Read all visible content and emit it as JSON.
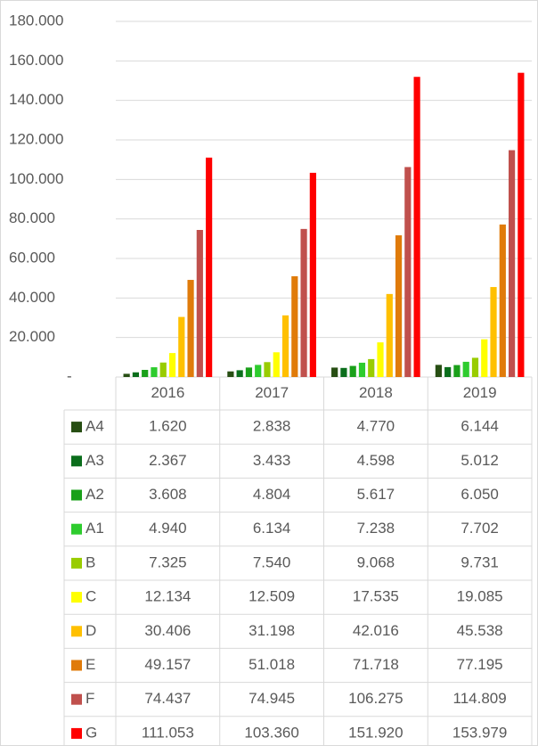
{
  "chart_data": {
    "type": "bar",
    "categories": [
      "2016",
      "2017",
      "2018",
      "2019"
    ],
    "ylim": [
      0,
      180000
    ],
    "yticks": [
      {
        "value": 0,
        "label": "-"
      },
      {
        "value": 20000,
        "label": "20.000"
      },
      {
        "value": 40000,
        "label": "40.000"
      },
      {
        "value": 60000,
        "label": "60.000"
      },
      {
        "value": 80000,
        "label": "80.000"
      },
      {
        "value": 100000,
        "label": "100.000"
      },
      {
        "value": 120000,
        "label": "120.000"
      },
      {
        "value": 140000,
        "label": "140.000"
      },
      {
        "value": 160000,
        "label": "160.000"
      },
      {
        "value": 180000,
        "label": "180.000"
      }
    ],
    "grid": true,
    "series": [
      {
        "name": "A4",
        "color": "#274e13",
        "values": [
          1620,
          2838,
          4770,
          6144
        ],
        "value_labels": [
          "1.620",
          "2.838",
          "4.770",
          "6.144"
        ]
      },
      {
        "name": "A3",
        "color": "#0b6e1c",
        "values": [
          2367,
          3433,
          4598,
          5012
        ],
        "value_labels": [
          "2.367",
          "3.433",
          "4.598",
          "5.012"
        ]
      },
      {
        "name": "A2",
        "color": "#1aa01a",
        "values": [
          3608,
          4804,
          5617,
          6050
        ],
        "value_labels": [
          "3.608",
          "4.804",
          "5.617",
          "6.050"
        ]
      },
      {
        "name": "A1",
        "color": "#2ecc2e",
        "values": [
          4940,
          6134,
          7238,
          7702
        ],
        "value_labels": [
          "4.940",
          "6.134",
          "7.238",
          "7.702"
        ]
      },
      {
        "name": "B",
        "color": "#99cc00",
        "values": [
          7325,
          7540,
          9068,
          9731
        ],
        "value_labels": [
          "7.325",
          "7.540",
          "9.068",
          "9.731"
        ]
      },
      {
        "name": "C",
        "color": "#ffff00",
        "values": [
          12134,
          12509,
          17535,
          19085
        ],
        "value_labels": [
          "12.134",
          "12.509",
          "17.535",
          "19.085"
        ]
      },
      {
        "name": "D",
        "color": "#ffc000",
        "values": [
          30406,
          31198,
          42016,
          45538
        ],
        "value_labels": [
          "30.406",
          "31.198",
          "42.016",
          "45.538"
        ]
      },
      {
        "name": "E",
        "color": "#e07b0a",
        "values": [
          49157,
          51018,
          71718,
          77195
        ],
        "value_labels": [
          "49.157",
          "51.018",
          "71.718",
          "77.195"
        ]
      },
      {
        "name": "F",
        "color": "#c0504d",
        "values": [
          74437,
          74945,
          106275,
          114809
        ],
        "value_labels": [
          "74.437",
          "74.945",
          "106.275",
          "114.809"
        ]
      },
      {
        "name": "G",
        "color": "#ff0000",
        "values": [
          111053,
          103360,
          151920,
          153979
        ],
        "value_labels": [
          "111.053",
          "103.360",
          "151.920",
          "153.979"
        ]
      }
    ]
  }
}
